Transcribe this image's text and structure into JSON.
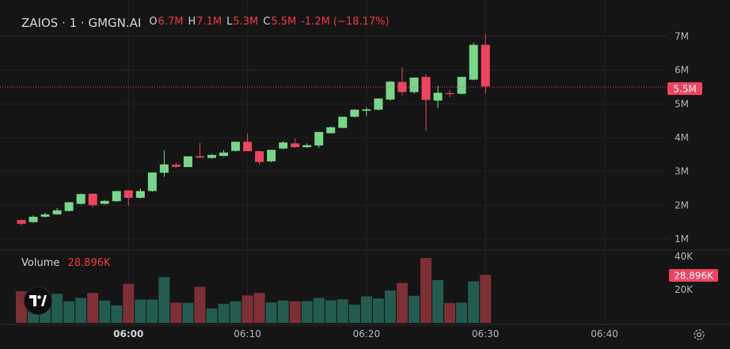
{
  "legend": {
    "symbol": "ZAIOS · 1 · GMGN.AI",
    "open_key": "O",
    "open": "6.7M",
    "high_key": "H",
    "high": "7.1M",
    "low_key": "L",
    "low": "5.3M",
    "close_key": "C",
    "close": "5.5M",
    "change": "-1.2M (−18.17%)"
  },
  "volume_legend": {
    "label": "Volume",
    "value": "28.896K"
  },
  "price_badge": "5.5M",
  "volume_badge": "28.896K",
  "colors": {
    "up": "#77d68a",
    "down": "#f0435f",
    "vol_up": "#225b50",
    "vol_down": "#7e2e36",
    "background": "#151515",
    "grid": "#222222"
  },
  "icons": {
    "logo": "tradingview-logo-icon",
    "settings": "gear-icon"
  },
  "chart_data": [
    {
      "type": "candlestick",
      "x_ticks": [
        "06:00",
        "06:10",
        "06:20",
        "06:30",
        "06:40"
      ],
      "y_ticks": [
        "1M",
        "2M",
        "3M",
        "4M",
        "5M",
        "6M",
        "7M"
      ],
      "ylim": [
        0.7,
        7.3
      ],
      "grid": true,
      "current_price": 5.5,
      "candles": [
        {
          "o": 1.56,
          "h": 1.58,
          "l": 1.4,
          "c": 1.45
        },
        {
          "o": 1.5,
          "h": 1.7,
          "l": 1.48,
          "c": 1.66
        },
        {
          "o": 1.66,
          "h": 1.78,
          "l": 1.63,
          "c": 1.73
        },
        {
          "o": 1.73,
          "h": 1.92,
          "l": 1.72,
          "c": 1.85
        },
        {
          "o": 1.83,
          "h": 2.09,
          "l": 1.82,
          "c": 2.09
        },
        {
          "o": 2.04,
          "h": 2.35,
          "l": 2.02,
          "c": 2.33
        },
        {
          "o": 2.34,
          "h": 2.36,
          "l": 1.94,
          "c": 2.0
        },
        {
          "o": 2.04,
          "h": 2.16,
          "l": 2.02,
          "c": 2.13
        },
        {
          "o": 2.12,
          "h": 2.42,
          "l": 2.1,
          "c": 2.42
        },
        {
          "o": 2.44,
          "h": 2.44,
          "l": 1.98,
          "c": 2.22
        },
        {
          "o": 2.22,
          "h": 2.5,
          "l": 2.2,
          "c": 2.42
        },
        {
          "o": 2.42,
          "h": 2.97,
          "l": 2.4,
          "c": 2.97
        },
        {
          "o": 2.96,
          "h": 3.62,
          "l": 2.84,
          "c": 3.21
        },
        {
          "o": 3.2,
          "h": 3.26,
          "l": 3.12,
          "c": 3.14
        },
        {
          "o": 3.13,
          "h": 3.45,
          "l": 3.13,
          "c": 3.45
        },
        {
          "o": 3.45,
          "h": 3.85,
          "l": 3.4,
          "c": 3.41
        },
        {
          "o": 3.4,
          "h": 3.52,
          "l": 3.38,
          "c": 3.49
        },
        {
          "o": 3.46,
          "h": 3.63,
          "l": 3.45,
          "c": 3.56
        },
        {
          "o": 3.61,
          "h": 3.88,
          "l": 3.59,
          "c": 3.88
        },
        {
          "o": 3.88,
          "h": 4.13,
          "l": 3.6,
          "c": 3.6
        },
        {
          "o": 3.6,
          "h": 3.62,
          "l": 3.2,
          "c": 3.28
        },
        {
          "o": 3.3,
          "h": 3.64,
          "l": 3.27,
          "c": 3.64
        },
        {
          "o": 3.68,
          "h": 3.9,
          "l": 3.65,
          "c": 3.86
        },
        {
          "o": 3.83,
          "h": 3.98,
          "l": 3.7,
          "c": 3.72
        },
        {
          "o": 3.72,
          "h": 3.84,
          "l": 3.7,
          "c": 3.78
        },
        {
          "o": 3.77,
          "h": 4.17,
          "l": 3.7,
          "c": 4.17
        },
        {
          "o": 4.13,
          "h": 4.34,
          "l": 4.13,
          "c": 4.31
        },
        {
          "o": 4.29,
          "h": 4.62,
          "l": 4.28,
          "c": 4.62
        },
        {
          "o": 4.62,
          "h": 4.85,
          "l": 4.6,
          "c": 4.83
        },
        {
          "o": 4.8,
          "h": 4.9,
          "l": 4.64,
          "c": 4.84
        },
        {
          "o": 4.83,
          "h": 5.16,
          "l": 4.8,
          "c": 5.16
        },
        {
          "o": 5.13,
          "h": 5.68,
          "l": 5.1,
          "c": 5.66
        },
        {
          "o": 5.65,
          "h": 6.08,
          "l": 5.25,
          "c": 5.35
        },
        {
          "o": 5.35,
          "h": 5.78,
          "l": 5.3,
          "c": 5.78
        },
        {
          "o": 5.8,
          "h": 5.88,
          "l": 4.2,
          "c": 5.12
        },
        {
          "o": 5.1,
          "h": 5.54,
          "l": 4.88,
          "c": 5.33
        },
        {
          "o": 5.32,
          "h": 5.42,
          "l": 5.2,
          "c": 5.29
        },
        {
          "o": 5.3,
          "h": 5.8,
          "l": 5.28,
          "c": 5.8
        },
        {
          "o": 5.72,
          "h": 6.82,
          "l": 5.7,
          "c": 6.75
        },
        {
          "o": 6.75,
          "h": 7.08,
          "l": 5.3,
          "c": 5.52
        }
      ]
    },
    {
      "type": "bar",
      "name": "Volume",
      "y_ticks": [
        "20K",
        "40K"
      ],
      "ylim": [
        0,
        40
      ],
      "values": [
        19,
        13,
        16,
        17.5,
        13,
        15,
        18,
        13.5,
        10.5,
        23.5,
        14,
        14,
        27.5,
        12.2,
        12.1,
        21.7,
        8.7,
        11.5,
        13,
        16.5,
        18,
        12.3,
        13.5,
        13,
        13.1,
        15,
        13.6,
        14.2,
        11,
        16,
        14.7,
        19.5,
        24,
        16.3,
        39,
        25.7,
        12,
        12.2,
        25,
        28.9
      ],
      "last_value": "28.896K"
    }
  ]
}
